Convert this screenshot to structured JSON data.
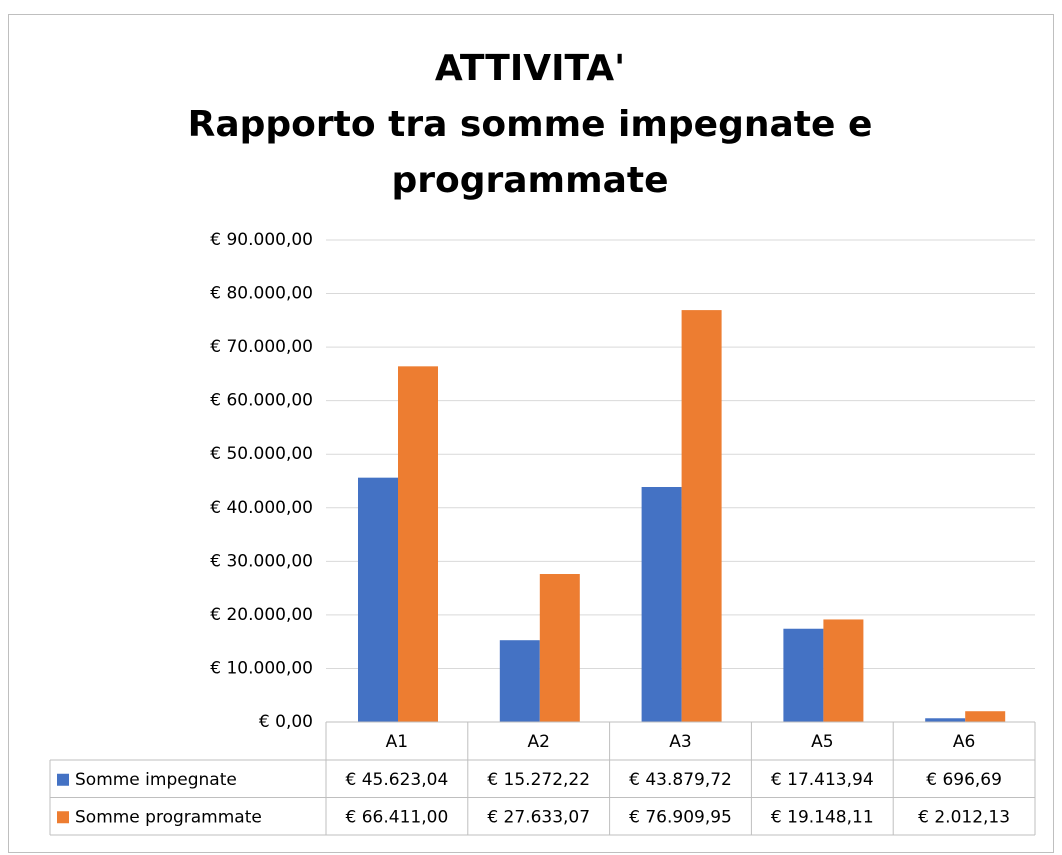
{
  "chart_data": {
    "type": "bar",
    "title": [
      "ATTIVITA'",
      "Rapporto tra somme impegnate e",
      "programmate"
    ],
    "categories": [
      "A1",
      "A2",
      "A3",
      "A5",
      "A6"
    ],
    "series": [
      {
        "name": "Somme impegnate",
        "color": "#4472c4",
        "values": [
          45623.04,
          15272.22,
          43879.72,
          17413.94,
          696.69
        ],
        "value_labels": [
          "€ 45.623,04",
          "€ 15.272,22",
          "€ 43.879,72",
          "€ 17.413,94",
          "€ 696,69"
        ]
      },
      {
        "name": "Somme programmate",
        "color": "#ed7d31",
        "values": [
          66411.0,
          27633.07,
          76909.95,
          19148.11,
          2012.13
        ],
        "value_labels": [
          "€ 66.411,00",
          "€ 27.633,07",
          "€ 76.909,95",
          "€ 19.148,11",
          "€ 2.012,13"
        ]
      }
    ],
    "ylim": [
      0,
      90000
    ],
    "yticks": [
      {
        "value": 0,
        "label": "€ 0,00"
      },
      {
        "value": 10000,
        "label": "€ 10.000,00"
      },
      {
        "value": 20000,
        "label": "€ 20.000,00"
      },
      {
        "value": 30000,
        "label": "€ 30.000,00"
      },
      {
        "value": 40000,
        "label": "€ 40.000,00"
      },
      {
        "value": 50000,
        "label": "€ 50.000,00"
      },
      {
        "value": 60000,
        "label": "€ 60.000,00"
      },
      {
        "value": 70000,
        "label": "€ 70.000,00"
      },
      {
        "value": 80000,
        "label": "€ 80.000,00"
      },
      {
        "value": 90000,
        "label": "€ 90.000,00"
      }
    ],
    "grid": true
  }
}
